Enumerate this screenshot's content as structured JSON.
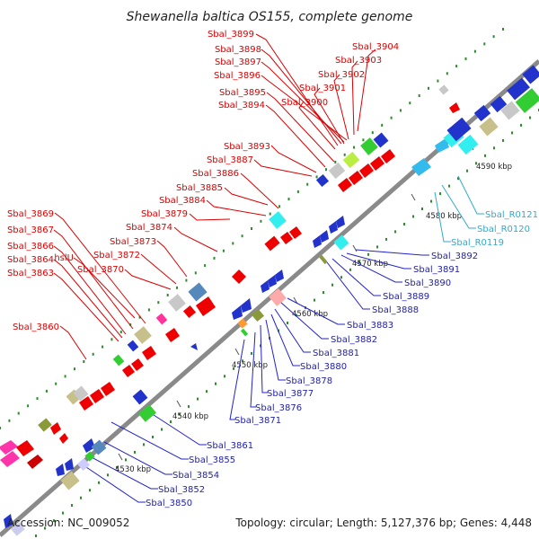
{
  "title": "Shewanella baltica OS155, complete genome",
  "footer": {
    "accession": "Accession: NC_009052",
    "summary": "Topology: circular; Length: 5,127,376 bp; Genes: 4,448"
  },
  "colors": {
    "label_top": "#dd0000",
    "label_bottom": "#2222aa",
    "label_rna": "#33aacc",
    "backbone": "#8a8a8a",
    "tick": "#2e8b2e"
  },
  "kbp_ticks": [
    "4530 kbp",
    "4540 kbp",
    "4550 kbp",
    "4560 kbp",
    "4570 kbp",
    "4580 kbp",
    "4590 kbp"
  ],
  "top_labels": [
    "Sbal_3899",
    "Sbal_3898",
    "Sbal_3897",
    "Sbal_3896",
    "Sbal_3895",
    "Sbal_3894",
    "Sbal_3904",
    "Sbal_3903",
    "Sbal_3902",
    "Sbal_3901",
    "Sbal_3900",
    "Sbal_3893",
    "Sbal_3887",
    "Sbal_3886",
    "Sbal_3885",
    "Sbal_3884",
    "Sbal_3879",
    "Sbal_3874",
    "Sbal_3873",
    "Sbal_3872",
    "Sbal_3870",
    "hslU",
    "Sbal_3869",
    "Sbal_3867",
    "Sbal_3866",
    "Sbal_3864",
    "Sbal_3863",
    "Sbal_3860"
  ],
  "bottom_labels": [
    "Sbal_3892",
    "Sbal_3891",
    "Sbal_3890",
    "Sbal_3889",
    "Sbal_3888",
    "Sbal_3883",
    "Sbal_3882",
    "Sbal_3881",
    "Sbal_3880",
    "Sbal_3878",
    "Sbal_3877",
    "Sbal_3876",
    "Sbal_3871",
    "Sbal_3861",
    "Sbal_3855",
    "Sbal_3854",
    "Sbal_3852",
    "Sbal_3850"
  ],
  "rna_labels": [
    "Sbal_R0121",
    "Sbal_R0120",
    "Sbal_R0119"
  ]
}
